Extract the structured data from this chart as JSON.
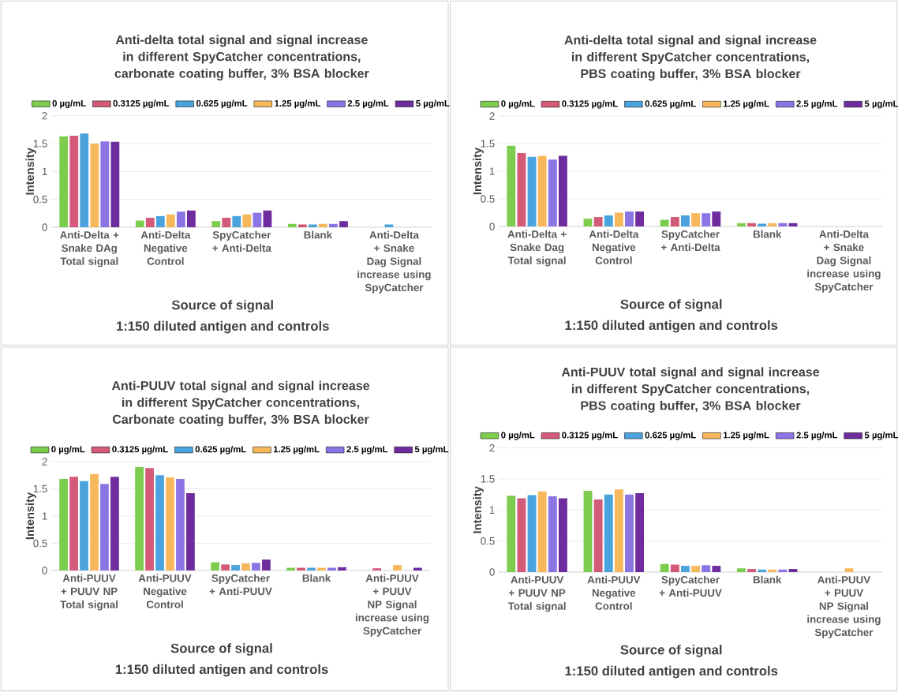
{
  "chart_data": [
    {
      "type": "bar",
      "title": "Anti-delta total signal and  signal increase in different SpyCatcher concentrations, carbonate coating buffer, 3% BSA blocker",
      "xlabel": "Source of signal",
      "ylabel": "Intensity",
      "annotations": [
        "1:150 diluted antigen and controls"
      ],
      "categories": [
        "Anti-Delta + Snake DAg Total signal",
        "Anti-Delta Negative Control",
        "SpyCatcher + Anti-Delta",
        "Blank",
        "Anti-Delta + Snake Dag Signal increase using SpyCatcher"
      ],
      "series": [
        {
          "name": "0 µg/mL",
          "color": "#7ccd4e",
          "values": [
            1.63,
            0.12,
            0.11,
            0.06,
            null
          ]
        },
        {
          "name": "0.3125 µg/mL",
          "color": "#d35a78",
          "values": [
            1.64,
            0.17,
            0.17,
            0.05,
            null
          ]
        },
        {
          "name": "0.625 µg/mL",
          "color": "#4aa3dc",
          "values": [
            1.68,
            0.2,
            0.2,
            0.05,
            0.05
          ]
        },
        {
          "name": "1.25 µg/mL",
          "color": "#f7b85c",
          "values": [
            1.5,
            0.23,
            0.23,
            0.06,
            null
          ]
        },
        {
          "name": "2.5 µg/mL",
          "color": "#8b74e3",
          "values": [
            1.54,
            0.28,
            0.26,
            0.06,
            null
          ]
        },
        {
          "name": "5 µg/mL",
          "color": "#6f2c9f",
          "values": [
            1.53,
            0.3,
            0.3,
            0.11,
            null
          ]
        }
      ],
      "ylim": [
        0,
        2
      ],
      "yticks": [
        0,
        0.5,
        1,
        1.5,
        2
      ],
      "grid": "y",
      "legend": "top"
    },
    {
      "type": "bar",
      "title": "Anti-delta total signal and  signal increase in different SpyCatcher concentrations, PBS coating buffer, 3% BSA blocker",
      "xlabel": "Source of signal",
      "ylabel": "Intensity",
      "annotations": [
        "1:150 diluted antigen and controls"
      ],
      "categories": [
        "Anti-Delta + Snake Dag Total signal",
        "Anti-Delta Negative Control",
        "SpyCatcher + Anti-Delta",
        "Blank",
        "Anti-Delta + Snake Dag Signal increase using SpyCatcher"
      ],
      "series": [
        {
          "name": "0 µg/mL",
          "color": "#7ccd4e",
          "values": [
            1.46,
            0.14,
            0.12,
            0.06,
            null
          ]
        },
        {
          "name": "0.3125 µg/mL",
          "color": "#d35a78",
          "values": [
            1.33,
            0.17,
            0.17,
            0.06,
            null
          ]
        },
        {
          "name": "0.625 µg/mL",
          "color": "#4aa3dc",
          "values": [
            1.26,
            0.2,
            0.2,
            0.05,
            null
          ]
        },
        {
          "name": "1.25 µg/mL",
          "color": "#f7b85c",
          "values": [
            1.28,
            0.25,
            0.24,
            0.06,
            null
          ]
        },
        {
          "name": "2.5 µg/mL",
          "color": "#8b74e3",
          "values": [
            1.21,
            0.27,
            0.24,
            0.06,
            null
          ]
        },
        {
          "name": "5 µg/mL",
          "color": "#6f2c9f",
          "values": [
            1.28,
            0.27,
            0.27,
            0.06,
            null
          ]
        }
      ],
      "ylim": [
        0,
        2
      ],
      "yticks": [
        0,
        0.5,
        1,
        1.5,
        2
      ],
      "grid": "y",
      "legend": "top"
    },
    {
      "type": "bar",
      "title": "Anti-PUUV total signal and signal increase in different SpyCatcher concentrations, Carbonate coating buffer, 3% BSA blocker",
      "xlabel": "Source of signal",
      "ylabel": "Intensity",
      "annotations": [
        "1:150 diluted antigen and controls"
      ],
      "categories": [
        "Anti-PUUV + PUUV NP Total signal",
        "Anti-PUUV Negative Control",
        "SpyCatcher + Anti-PUUV",
        "Blank",
        "Anti-PUUV + PUUV NP Signal increase using SpyCatcher"
      ],
      "series": [
        {
          "name": "0 µg/mL",
          "color": "#7ccd4e",
          "values": [
            1.68,
            1.9,
            0.15,
            0.05,
            null
          ]
        },
        {
          "name": "0.3125 µg/mL",
          "color": "#d35a78",
          "values": [
            1.72,
            1.88,
            0.11,
            0.05,
            0.04
          ]
        },
        {
          "name": "0.625 µg/mL",
          "color": "#4aa3dc",
          "values": [
            1.64,
            1.75,
            0.1,
            0.05,
            null
          ]
        },
        {
          "name": "1.25 µg/mL",
          "color": "#f7b85c",
          "values": [
            1.77,
            1.71,
            0.13,
            0.05,
            0.1
          ]
        },
        {
          "name": "2.5 µg/mL",
          "color": "#8b74e3",
          "values": [
            1.59,
            1.68,
            0.14,
            0.05,
            null
          ]
        },
        {
          "name": "5 µg/mL",
          "color": "#6f2c9f",
          "values": [
            1.72,
            1.42,
            0.2,
            0.06,
            0.05
          ]
        }
      ],
      "ylim": [
        0,
        2
      ],
      "yticks": [
        0,
        0.5,
        1,
        1.5,
        2
      ],
      "grid": "y",
      "legend": "top"
    },
    {
      "type": "bar",
      "title": "Anti-PUUV total signal and  signal increase in different SpyCatcher concentrations, PBS coating buffer, 3% BSA blocker",
      "xlabel": "Source of signal",
      "ylabel": "Intensity",
      "annotations": [
        "1:150 diluted antigen and controls"
      ],
      "categories": [
        "Anti-PUUV + PUUV NP Total signal",
        "Anti-PUUV Negative Control",
        "SpyCatcher + Anti-PUUV",
        "Blank",
        "Anti-PUUV + PUUV NP Signal increase using SpyCatcher"
      ],
      "series": [
        {
          "name": "0 µg/mL",
          "color": "#7ccd4e",
          "values": [
            1.23,
            1.31,
            0.13,
            0.06,
            null
          ]
        },
        {
          "name": "0.3125 µg/mL",
          "color": "#d35a78",
          "values": [
            1.19,
            1.17,
            0.12,
            0.05,
            null
          ]
        },
        {
          "name": "0.625 µg/mL",
          "color": "#4aa3dc",
          "values": [
            1.24,
            1.25,
            0.1,
            0.04,
            null
          ]
        },
        {
          "name": "1.25 µg/mL",
          "color": "#f7b85c",
          "values": [
            1.3,
            1.33,
            0.1,
            0.04,
            0.06
          ]
        },
        {
          "name": "2.5 µg/mL",
          "color": "#8b74e3",
          "values": [
            1.22,
            1.25,
            0.11,
            0.04,
            null
          ]
        },
        {
          "name": "5 µg/mL",
          "color": "#6f2c9f",
          "values": [
            1.19,
            1.27,
            0.1,
            0.05,
            null
          ]
        }
      ],
      "ylim": [
        0,
        2
      ],
      "yticks": [
        0,
        0.5,
        1,
        1.5,
        2
      ],
      "grid": "y",
      "legend": "top"
    }
  ]
}
